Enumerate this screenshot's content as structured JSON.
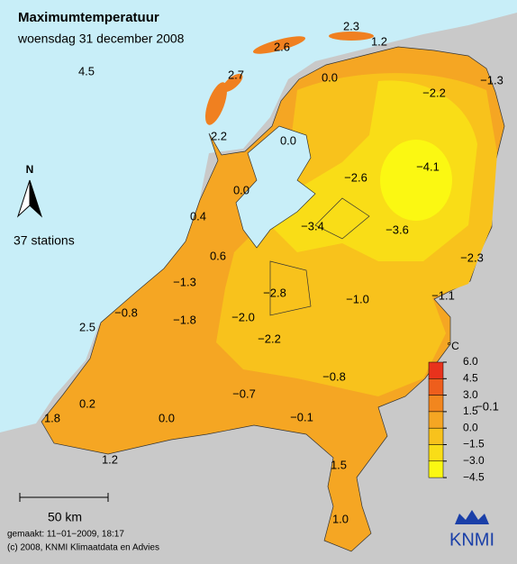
{
  "header": {
    "title": "Maximumtemperatuur",
    "subtitle": "woensdag 31 december 2008"
  },
  "map": {
    "north": "N",
    "station_count": "37 stations",
    "scale_bar": "50 km",
    "stations": [
      "2.3",
      "2.6",
      "1.2",
      "4.5",
      "2.7",
      "0.0",
      "−2.2",
      "−1.3",
      "2.2",
      "0.0",
      "−4.1",
      "−2.6",
      "0.0",
      "0.4",
      "−3.4",
      "−3.6",
      "0.6",
      "−2.3",
      "−1.3",
      "−2.8",
      "−1.0",
      "−1.1",
      "−0.8",
      "−1.8",
      "−2.0",
      "2.5",
      "−2.2",
      "−0.8",
      "0.2",
      "−0.7",
      "−0.1",
      "1.8",
      "0.0",
      "−0.1",
      "1.2",
      "1.5",
      "1.0"
    ]
  },
  "legend": {
    "unit": "°C",
    "ticks": [
      "6.0",
      "4.5",
      "3.0",
      "1.5",
      "0.0",
      "−1.5",
      "−3.0",
      "−4.5"
    ],
    "colors": [
      "#e8321c",
      "#ee5e1c",
      "#f2861e",
      "#f5a623",
      "#f8c21c",
      "#f9dd17",
      "#fbf812"
    ]
  },
  "footer": {
    "made": "gemaakt: 11−01−2009, 18:17",
    "copyright": "(c) 2008, KNMI Klimaatdata en Advies"
  },
  "logo": {
    "text": "KNMI"
  }
}
